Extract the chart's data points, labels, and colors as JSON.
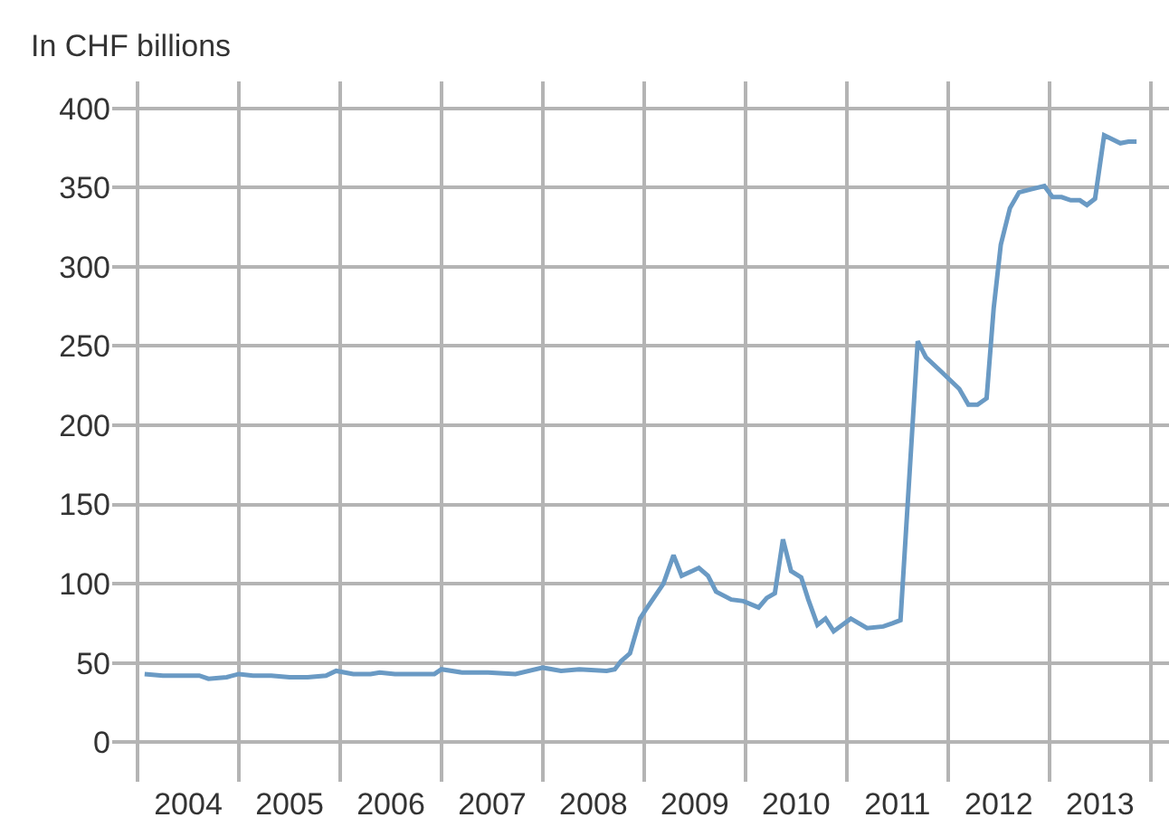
{
  "chart_data": {
    "type": "line",
    "ylabel": "In CHF billions",
    "x": [
      2004.07,
      2004.25,
      2004.43,
      2004.61,
      2004.7,
      2004.88,
      2005.0,
      2005.14,
      2005.32,
      2005.5,
      2005.68,
      2005.86,
      2005.96,
      2006.13,
      2006.3,
      2006.39,
      2006.54,
      2006.75,
      2006.93,
      2007.0,
      2007.2,
      2007.46,
      2007.73,
      2008.0,
      2008.18,
      2008.36,
      2008.63,
      2008.71,
      2008.77,
      2008.86,
      2008.96,
      2009.01,
      2009.19,
      2009.29,
      2009.37,
      2009.54,
      2009.63,
      2009.71,
      2009.86,
      2009.98,
      2010.13,
      2010.21,
      2010.29,
      2010.37,
      2010.45,
      2010.55,
      2010.62,
      2010.71,
      2010.79,
      2010.87,
      2011.04,
      2011.2,
      2011.36,
      2011.45,
      2011.53,
      2011.7,
      2011.78,
      2011.93,
      2012.11,
      2012.2,
      2012.29,
      2012.38,
      2012.45,
      2012.52,
      2012.61,
      2012.7,
      2012.82,
      2012.95,
      2013.03,
      2013.12,
      2013.21,
      2013.3,
      2013.37,
      2013.45,
      2013.54,
      2013.7,
      2013.78,
      2013.86
    ],
    "series": [
      {
        "color": "#6a9ac4",
        "values": [
          43,
          42,
          42,
          42,
          40,
          41,
          43,
          42,
          42,
          41,
          41,
          42,
          45,
          43,
          43,
          44,
          43,
          43,
          43,
          46,
          44,
          44,
          43,
          47,
          45,
          46,
          45,
          46,
          51,
          56,
          78,
          83,
          100,
          118,
          105,
          110,
          105,
          95,
          90,
          89,
          85,
          91,
          94,
          128,
          108,
          104,
          90,
          74,
          78,
          70,
          78,
          72,
          73,
          75,
          77,
          253,
          243,
          234,
          223,
          213,
          213,
          217,
          274,
          314,
          337,
          347,
          349,
          351,
          344,
          344,
          342,
          342,
          339,
          343,
          383,
          378,
          379,
          379
        ]
      }
    ],
    "xlim": [
      2003.75,
      2014.18
    ],
    "xticks": [
      {
        "value": 2004,
        "label": null
      },
      {
        "value": 2004.5,
        "label": "2004"
      },
      {
        "value": 2005,
        "label": null
      },
      {
        "value": 2005.5,
        "label": "2005"
      },
      {
        "value": 2006,
        "label": null
      },
      {
        "value": 2006.5,
        "label": "2006"
      },
      {
        "value": 2007,
        "label": null
      },
      {
        "value": 2007.5,
        "label": "2007"
      },
      {
        "value": 2008,
        "label": null
      },
      {
        "value": 2008.5,
        "label": "2008"
      },
      {
        "value": 2009,
        "label": null
      },
      {
        "value": 2009.5,
        "label": "2009"
      },
      {
        "value": 2010,
        "label": null
      },
      {
        "value": 2010.5,
        "label": "2010"
      },
      {
        "value": 2011,
        "label": null
      },
      {
        "value": 2011.5,
        "label": "2011"
      },
      {
        "value": 2012,
        "label": null
      },
      {
        "value": 2012.5,
        "label": "2012"
      },
      {
        "value": 2013,
        "label": null
      },
      {
        "value": 2013.5,
        "label": "2013"
      },
      {
        "value": 2014,
        "label": null
      }
    ],
    "ylim": [
      -25,
      417
    ],
    "yticks": [
      0,
      50,
      100,
      150,
      200,
      250,
      300,
      350,
      400
    ],
    "grid": true
  }
}
